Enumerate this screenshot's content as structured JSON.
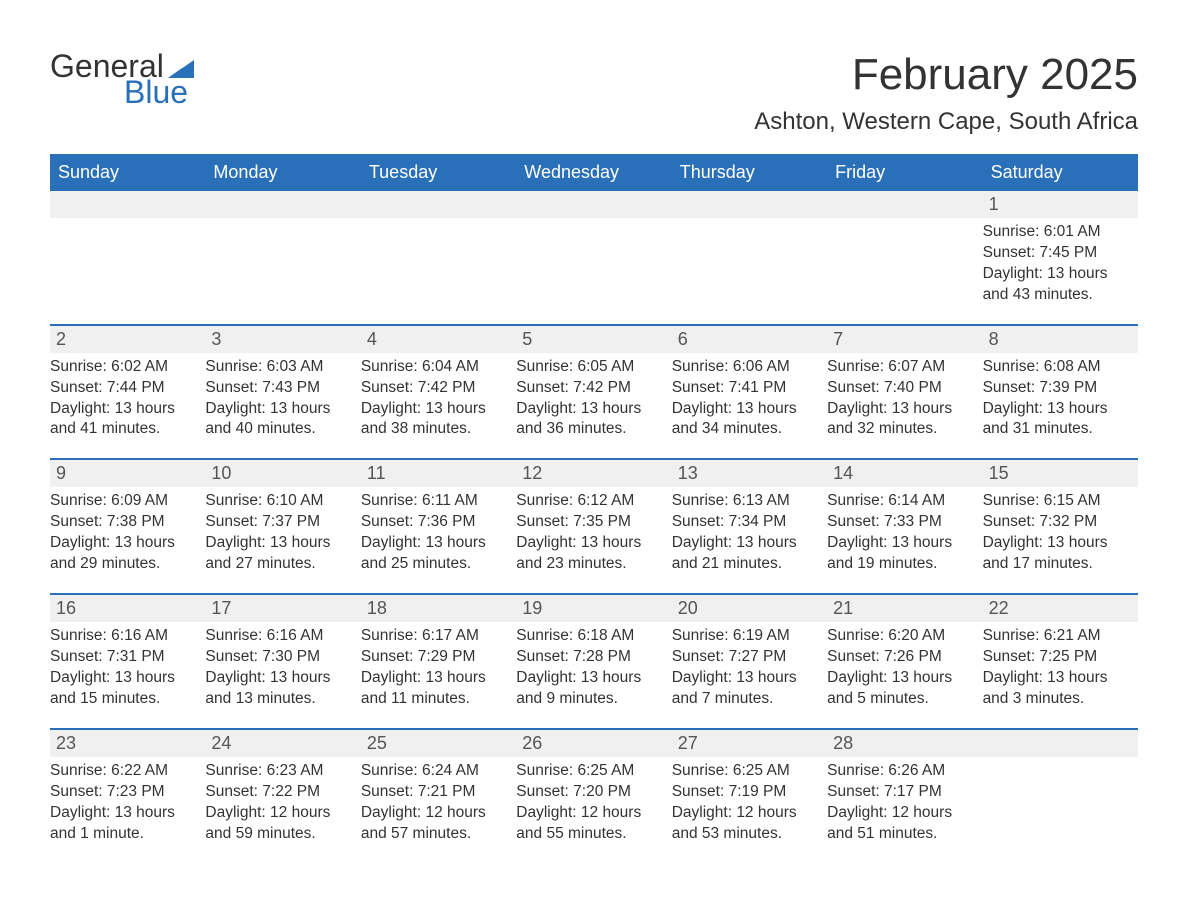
{
  "logo": {
    "word1": "General",
    "word2": "Blue",
    "accent_color": "#2a70b8"
  },
  "title": "February 2025",
  "location": "Ashton, Western Cape, South Africa",
  "colors": {
    "header_bg": "#2a70b8",
    "header_text": "#ffffff",
    "daynum_bg": "#f0f0f0",
    "body_bg": "#ffffff",
    "text": "#333333",
    "row_divider": "#2a70b8"
  },
  "typography": {
    "title_fontsize": 44,
    "location_fontsize": 24,
    "weekday_fontsize": 18,
    "daynum_fontsize": 18,
    "body_fontsize": 15.5
  },
  "layout": {
    "columns": 7,
    "rows": 5
  },
  "weekdays": [
    "Sunday",
    "Monday",
    "Tuesday",
    "Wednesday",
    "Thursday",
    "Friday",
    "Saturday"
  ],
  "leading_blanks": 6,
  "days": [
    {
      "n": 1,
      "sunrise": "6:01 AM",
      "sunset": "7:45 PM",
      "daylight": "13 hours and 43 minutes."
    },
    {
      "n": 2,
      "sunrise": "6:02 AM",
      "sunset": "7:44 PM",
      "daylight": "13 hours and 41 minutes."
    },
    {
      "n": 3,
      "sunrise": "6:03 AM",
      "sunset": "7:43 PM",
      "daylight": "13 hours and 40 minutes."
    },
    {
      "n": 4,
      "sunrise": "6:04 AM",
      "sunset": "7:42 PM",
      "daylight": "13 hours and 38 minutes."
    },
    {
      "n": 5,
      "sunrise": "6:05 AM",
      "sunset": "7:42 PM",
      "daylight": "13 hours and 36 minutes."
    },
    {
      "n": 6,
      "sunrise": "6:06 AM",
      "sunset": "7:41 PM",
      "daylight": "13 hours and 34 minutes."
    },
    {
      "n": 7,
      "sunrise": "6:07 AM",
      "sunset": "7:40 PM",
      "daylight": "13 hours and 32 minutes."
    },
    {
      "n": 8,
      "sunrise": "6:08 AM",
      "sunset": "7:39 PM",
      "daylight": "13 hours and 31 minutes."
    },
    {
      "n": 9,
      "sunrise": "6:09 AM",
      "sunset": "7:38 PM",
      "daylight": "13 hours and 29 minutes."
    },
    {
      "n": 10,
      "sunrise": "6:10 AM",
      "sunset": "7:37 PM",
      "daylight": "13 hours and 27 minutes."
    },
    {
      "n": 11,
      "sunrise": "6:11 AM",
      "sunset": "7:36 PM",
      "daylight": "13 hours and 25 minutes."
    },
    {
      "n": 12,
      "sunrise": "6:12 AM",
      "sunset": "7:35 PM",
      "daylight": "13 hours and 23 minutes."
    },
    {
      "n": 13,
      "sunrise": "6:13 AM",
      "sunset": "7:34 PM",
      "daylight": "13 hours and 21 minutes."
    },
    {
      "n": 14,
      "sunrise": "6:14 AM",
      "sunset": "7:33 PM",
      "daylight": "13 hours and 19 minutes."
    },
    {
      "n": 15,
      "sunrise": "6:15 AM",
      "sunset": "7:32 PM",
      "daylight": "13 hours and 17 minutes."
    },
    {
      "n": 16,
      "sunrise": "6:16 AM",
      "sunset": "7:31 PM",
      "daylight": "13 hours and 15 minutes."
    },
    {
      "n": 17,
      "sunrise": "6:16 AM",
      "sunset": "7:30 PM",
      "daylight": "13 hours and 13 minutes."
    },
    {
      "n": 18,
      "sunrise": "6:17 AM",
      "sunset": "7:29 PM",
      "daylight": "13 hours and 11 minutes."
    },
    {
      "n": 19,
      "sunrise": "6:18 AM",
      "sunset": "7:28 PM",
      "daylight": "13 hours and 9 minutes."
    },
    {
      "n": 20,
      "sunrise": "6:19 AM",
      "sunset": "7:27 PM",
      "daylight": "13 hours and 7 minutes."
    },
    {
      "n": 21,
      "sunrise": "6:20 AM",
      "sunset": "7:26 PM",
      "daylight": "13 hours and 5 minutes."
    },
    {
      "n": 22,
      "sunrise": "6:21 AM",
      "sunset": "7:25 PM",
      "daylight": "13 hours and 3 minutes."
    },
    {
      "n": 23,
      "sunrise": "6:22 AM",
      "sunset": "7:23 PM",
      "daylight": "13 hours and 1 minute."
    },
    {
      "n": 24,
      "sunrise": "6:23 AM",
      "sunset": "7:22 PM",
      "daylight": "12 hours and 59 minutes."
    },
    {
      "n": 25,
      "sunrise": "6:24 AM",
      "sunset": "7:21 PM",
      "daylight": "12 hours and 57 minutes."
    },
    {
      "n": 26,
      "sunrise": "6:25 AM",
      "sunset": "7:20 PM",
      "daylight": "12 hours and 55 minutes."
    },
    {
      "n": 27,
      "sunrise": "6:25 AM",
      "sunset": "7:19 PM",
      "daylight": "12 hours and 53 minutes."
    },
    {
      "n": 28,
      "sunrise": "6:26 AM",
      "sunset": "7:17 PM",
      "daylight": "12 hours and 51 minutes."
    }
  ],
  "labels": {
    "sunrise": "Sunrise: ",
    "sunset": "Sunset: ",
    "daylight": "Daylight: "
  }
}
